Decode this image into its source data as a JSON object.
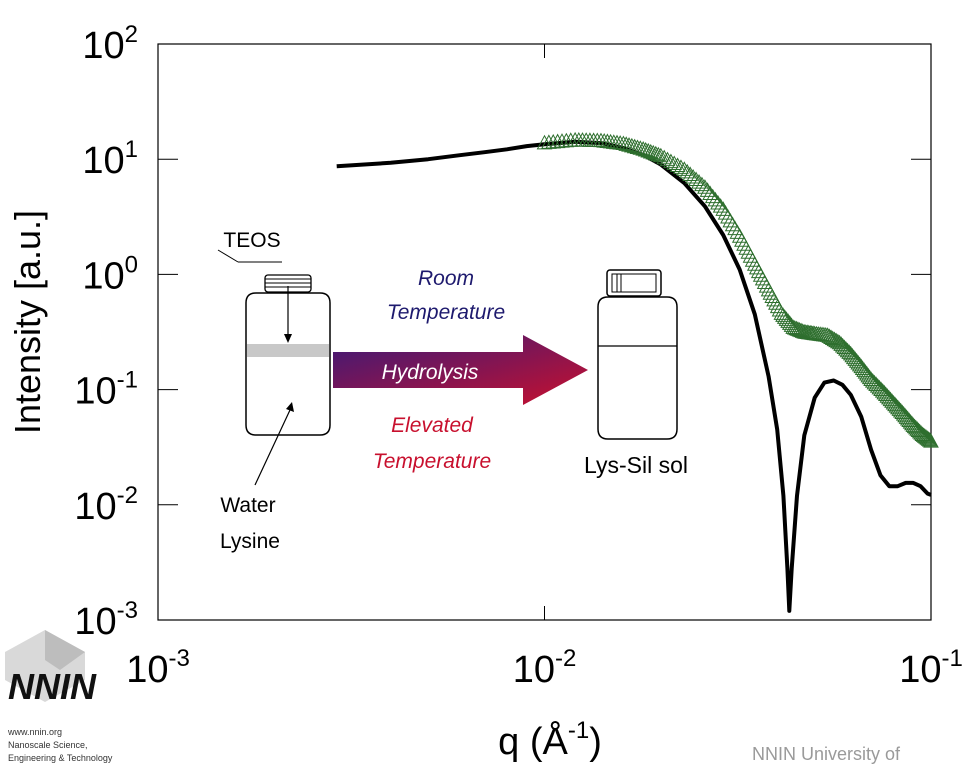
{
  "chart_data": {
    "type": "scatter",
    "xscale": "log",
    "yscale": "log",
    "xlim": [
      0.001,
      0.1
    ],
    "ylim": [
      0.001,
      100
    ],
    "xlabel": "q (Å-1)",
    "ylabel": "Intensity [a.u.]",
    "x_ticks": [
      {
        "base": "10",
        "exp": "-3",
        "value": 0.001
      },
      {
        "base": "10",
        "exp": "-2",
        "value": 0.01
      },
      {
        "base": "10",
        "exp": "-1",
        "value": 0.1
      }
    ],
    "y_ticks": [
      {
        "base": "10",
        "exp": "2",
        "value": 100
      },
      {
        "base": "10",
        "exp": "1",
        "value": 10
      },
      {
        "base": "10",
        "exp": "0",
        "value": 1
      },
      {
        "base": "10",
        "exp": "-1",
        "value": 0.1
      },
      {
        "base": "10",
        "exp": "-2",
        "value": 0.01
      },
      {
        "base": "10",
        "exp": "-3",
        "value": 0.001
      }
    ],
    "series": [
      {
        "style": "line",
        "color": "#000000",
        "points": [
          [
            0.0029,
            8.7
          ],
          [
            0.004,
            9.3
          ],
          [
            0.005,
            10.0
          ],
          [
            0.006,
            10.8
          ],
          [
            0.007,
            11.5
          ],
          [
            0.008,
            12.2
          ],
          [
            0.009,
            13.0
          ],
          [
            0.01,
            13.5
          ],
          [
            0.012,
            14.2
          ],
          [
            0.014,
            13.8
          ],
          [
            0.016,
            12.5
          ],
          [
            0.018,
            10.9
          ],
          [
            0.02,
            9.0
          ],
          [
            0.023,
            6.2
          ],
          [
            0.026,
            3.9
          ],
          [
            0.029,
            2.2
          ],
          [
            0.032,
            1.1
          ],
          [
            0.035,
            0.45
          ],
          [
            0.038,
            0.13
          ],
          [
            0.04,
            0.045
          ],
          [
            0.0415,
            0.012
          ],
          [
            0.0425,
            0.0028
          ],
          [
            0.043,
            0.0012
          ],
          [
            0.0436,
            0.0028
          ],
          [
            0.045,
            0.012
          ],
          [
            0.047,
            0.04
          ],
          [
            0.05,
            0.085
          ],
          [
            0.053,
            0.115
          ],
          [
            0.056,
            0.12
          ],
          [
            0.059,
            0.11
          ],
          [
            0.062,
            0.09
          ],
          [
            0.066,
            0.058
          ],
          [
            0.07,
            0.03
          ],
          [
            0.074,
            0.018
          ],
          [
            0.078,
            0.0145
          ],
          [
            0.082,
            0.0145
          ],
          [
            0.086,
            0.0155
          ],
          [
            0.09,
            0.0155
          ],
          [
            0.094,
            0.0145
          ],
          [
            0.098,
            0.0125
          ],
          [
            0.1,
            0.0122
          ]
        ]
      },
      {
        "style": "open-triangle",
        "color": "#2e6f2e",
        "points": [
          [
            0.01,
            13.6
          ],
          [
            0.012,
            14.4
          ],
          [
            0.014,
            14.2
          ],
          [
            0.016,
            13.4
          ],
          [
            0.018,
            12.0
          ],
          [
            0.02,
            10.5
          ],
          [
            0.023,
            8.0
          ],
          [
            0.026,
            5.6
          ],
          [
            0.029,
            3.6
          ],
          [
            0.032,
            2.1
          ],
          [
            0.035,
            1.2
          ],
          [
            0.038,
            0.72
          ],
          [
            0.041,
            0.45
          ],
          [
            0.044,
            0.34
          ],
          [
            0.047,
            0.31
          ],
          [
            0.05,
            0.3
          ],
          [
            0.054,
            0.29
          ],
          [
            0.058,
            0.25
          ],
          [
            0.062,
            0.2
          ],
          [
            0.066,
            0.155
          ],
          [
            0.07,
            0.12
          ],
          [
            0.075,
            0.095
          ],
          [
            0.08,
            0.075
          ],
          [
            0.085,
            0.06
          ],
          [
            0.09,
            0.048
          ],
          [
            0.095,
            0.04
          ],
          [
            0.1,
            0.035
          ]
        ]
      }
    ]
  },
  "inset": {
    "teos_label": "TEOS",
    "water_label": "Water",
    "lysine_label": "Lysine",
    "room_label_1": "Room",
    "room_label_2": "Temperature",
    "hydrolysis_label": "Hydrolysis",
    "elevated_label_1": "Elevated",
    "elevated_label_2": "Temperature",
    "product_label": "Lys-Sil sol",
    "room_color": "#1e1a6e",
    "elevated_color": "#c8102e",
    "arrow_colors": [
      "#3b1a78",
      "#c8102e"
    ]
  },
  "logo": {
    "name": "NNIN",
    "line1": "www.nnin.org",
    "line2": "Nanoscale Science,",
    "line3": "Engineering & Technology"
  },
  "footer": "NNIN University of"
}
